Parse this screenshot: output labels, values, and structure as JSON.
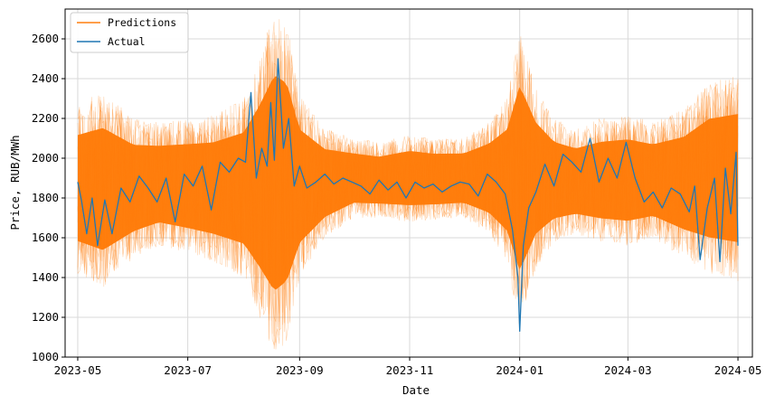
{
  "chart_data": {
    "type": "line",
    "xlabel": "Date",
    "ylabel": "Price, RUB/MWh",
    "ylim": [
      1000,
      2750
    ],
    "xlim": [
      "2023-04-24",
      "2024-05-09"
    ],
    "y_ticks": [
      1000,
      1200,
      1400,
      1600,
      1800,
      2000,
      2200,
      2400,
      2600
    ],
    "x_ticks": [
      "2023-05",
      "2023-07",
      "2023-09",
      "2023-11",
      "2024-01",
      "2024-03",
      "2024-05"
    ],
    "x_tick_dates": [
      "2023-05-01",
      "2023-07-01",
      "2023-09-01",
      "2023-11-01",
      "2024-01-01",
      "2024-03-01",
      "2024-05-01"
    ],
    "grid": true,
    "legend_position": "top-left",
    "series": [
      {
        "name": "Predictions",
        "color": "#ff7f0e",
        "style": "dense band of many overlapping forecast lines",
        "x": [
          "2023-05-01",
          "2023-05-15",
          "2023-06-01",
          "2023-06-15",
          "2023-07-01",
          "2023-07-15",
          "2023-08-01",
          "2023-08-10",
          "2023-08-18",
          "2023-08-25",
          "2023-09-01",
          "2023-09-15",
          "2023-10-01",
          "2023-10-15",
          "2023-11-01",
          "2023-11-15",
          "2023-12-01",
          "2023-12-15",
          "2023-12-25",
          "2024-01-01",
          "2024-01-10",
          "2024-01-20",
          "2024-02-01",
          "2024-02-15",
          "2024-03-01",
          "2024-03-15",
          "2024-04-01",
          "2024-04-15",
          "2024-05-01"
        ],
        "upper": [
          2280,
          2340,
          2200,
          2180,
          2200,
          2220,
          2300,
          2520,
          2750,
          2680,
          2320,
          2150,
          2100,
          2080,
          2120,
          2100,
          2100,
          2180,
          2300,
          2650,
          2350,
          2200,
          2150,
          2200,
          2220,
          2180,
          2250,
          2380,
          2420
        ],
        "lower": [
          1420,
          1350,
          1500,
          1560,
          1520,
          1480,
          1400,
          1200,
          1000,
          1080,
          1400,
          1600,
          1700,
          1700,
          1680,
          1690,
          1700,
          1620,
          1480,
          1150,
          1450,
          1580,
          1620,
          1580,
          1560,
          1600,
          1500,
          1420,
          1380
        ]
      },
      {
        "name": "Actual",
        "color": "#1f77b4",
        "x": [
          "2023-05-01",
          "2023-05-03",
          "2023-05-06",
          "2023-05-09",
          "2023-05-12",
          "2023-05-16",
          "2023-05-20",
          "2023-05-25",
          "2023-05-30",
          "2023-06-04",
          "2023-06-09",
          "2023-06-14",
          "2023-06-19",
          "2023-06-24",
          "2023-06-29",
          "2023-07-04",
          "2023-07-09",
          "2023-07-14",
          "2023-07-19",
          "2023-07-24",
          "2023-07-29",
          "2023-08-02",
          "2023-08-05",
          "2023-08-08",
          "2023-08-11",
          "2023-08-14",
          "2023-08-16",
          "2023-08-18",
          "2023-08-20",
          "2023-08-23",
          "2023-08-26",
          "2023-08-29",
          "2023-09-01",
          "2023-09-05",
          "2023-09-10",
          "2023-09-15",
          "2023-09-20",
          "2023-09-25",
          "2023-09-30",
          "2023-10-05",
          "2023-10-10",
          "2023-10-15",
          "2023-10-20",
          "2023-10-25",
          "2023-10-30",
          "2023-11-04",
          "2023-11-09",
          "2023-11-14",
          "2023-11-19",
          "2023-11-24",
          "2023-11-29",
          "2023-12-04",
          "2023-12-09",
          "2023-12-14",
          "2023-12-19",
          "2023-12-24",
          "2023-12-28",
          "2023-12-31",
          "2024-01-01",
          "2024-01-03",
          "2024-01-06",
          "2024-01-10",
          "2024-01-15",
          "2024-01-20",
          "2024-01-25",
          "2024-01-30",
          "2024-02-04",
          "2024-02-09",
          "2024-02-14",
          "2024-02-19",
          "2024-02-24",
          "2024-02-29",
          "2024-03-05",
          "2024-03-10",
          "2024-03-15",
          "2024-03-20",
          "2024-03-25",
          "2024-03-30",
          "2024-04-04",
          "2024-04-07",
          "2024-04-10",
          "2024-04-14",
          "2024-04-18",
          "2024-04-21",
          "2024-04-24",
          "2024-04-27",
          "2024-04-30",
          "2024-05-01"
        ],
        "y": [
          1880,
          1790,
          1620,
          1800,
          1560,
          1790,
          1620,
          1850,
          1780,
          1910,
          1850,
          1780,
          1900,
          1680,
          1920,
          1860,
          1960,
          1740,
          1980,
          1930,
          2000,
          1980,
          2330,
          1900,
          2050,
          1960,
          2280,
          1990,
          2500,
          2050,
          2200,
          1860,
          1960,
          1850,
          1880,
          1920,
          1870,
          1900,
          1880,
          1860,
          1820,
          1890,
          1840,
          1880,
          1800,
          1880,
          1850,
          1870,
          1830,
          1860,
          1880,
          1870,
          1810,
          1920,
          1880,
          1820,
          1640,
          1400,
          1130,
          1560,
          1750,
          1830,
          1970,
          1860,
          2020,
          1980,
          1930,
          2100,
          1880,
          2000,
          1900,
          2080,
          1900,
          1780,
          1830,
          1750,
          1850,
          1820,
          1730,
          1860,
          1490,
          1750,
          1900,
          1480,
          1950,
          1720,
          2030,
          1560
        ]
      }
    ]
  }
}
